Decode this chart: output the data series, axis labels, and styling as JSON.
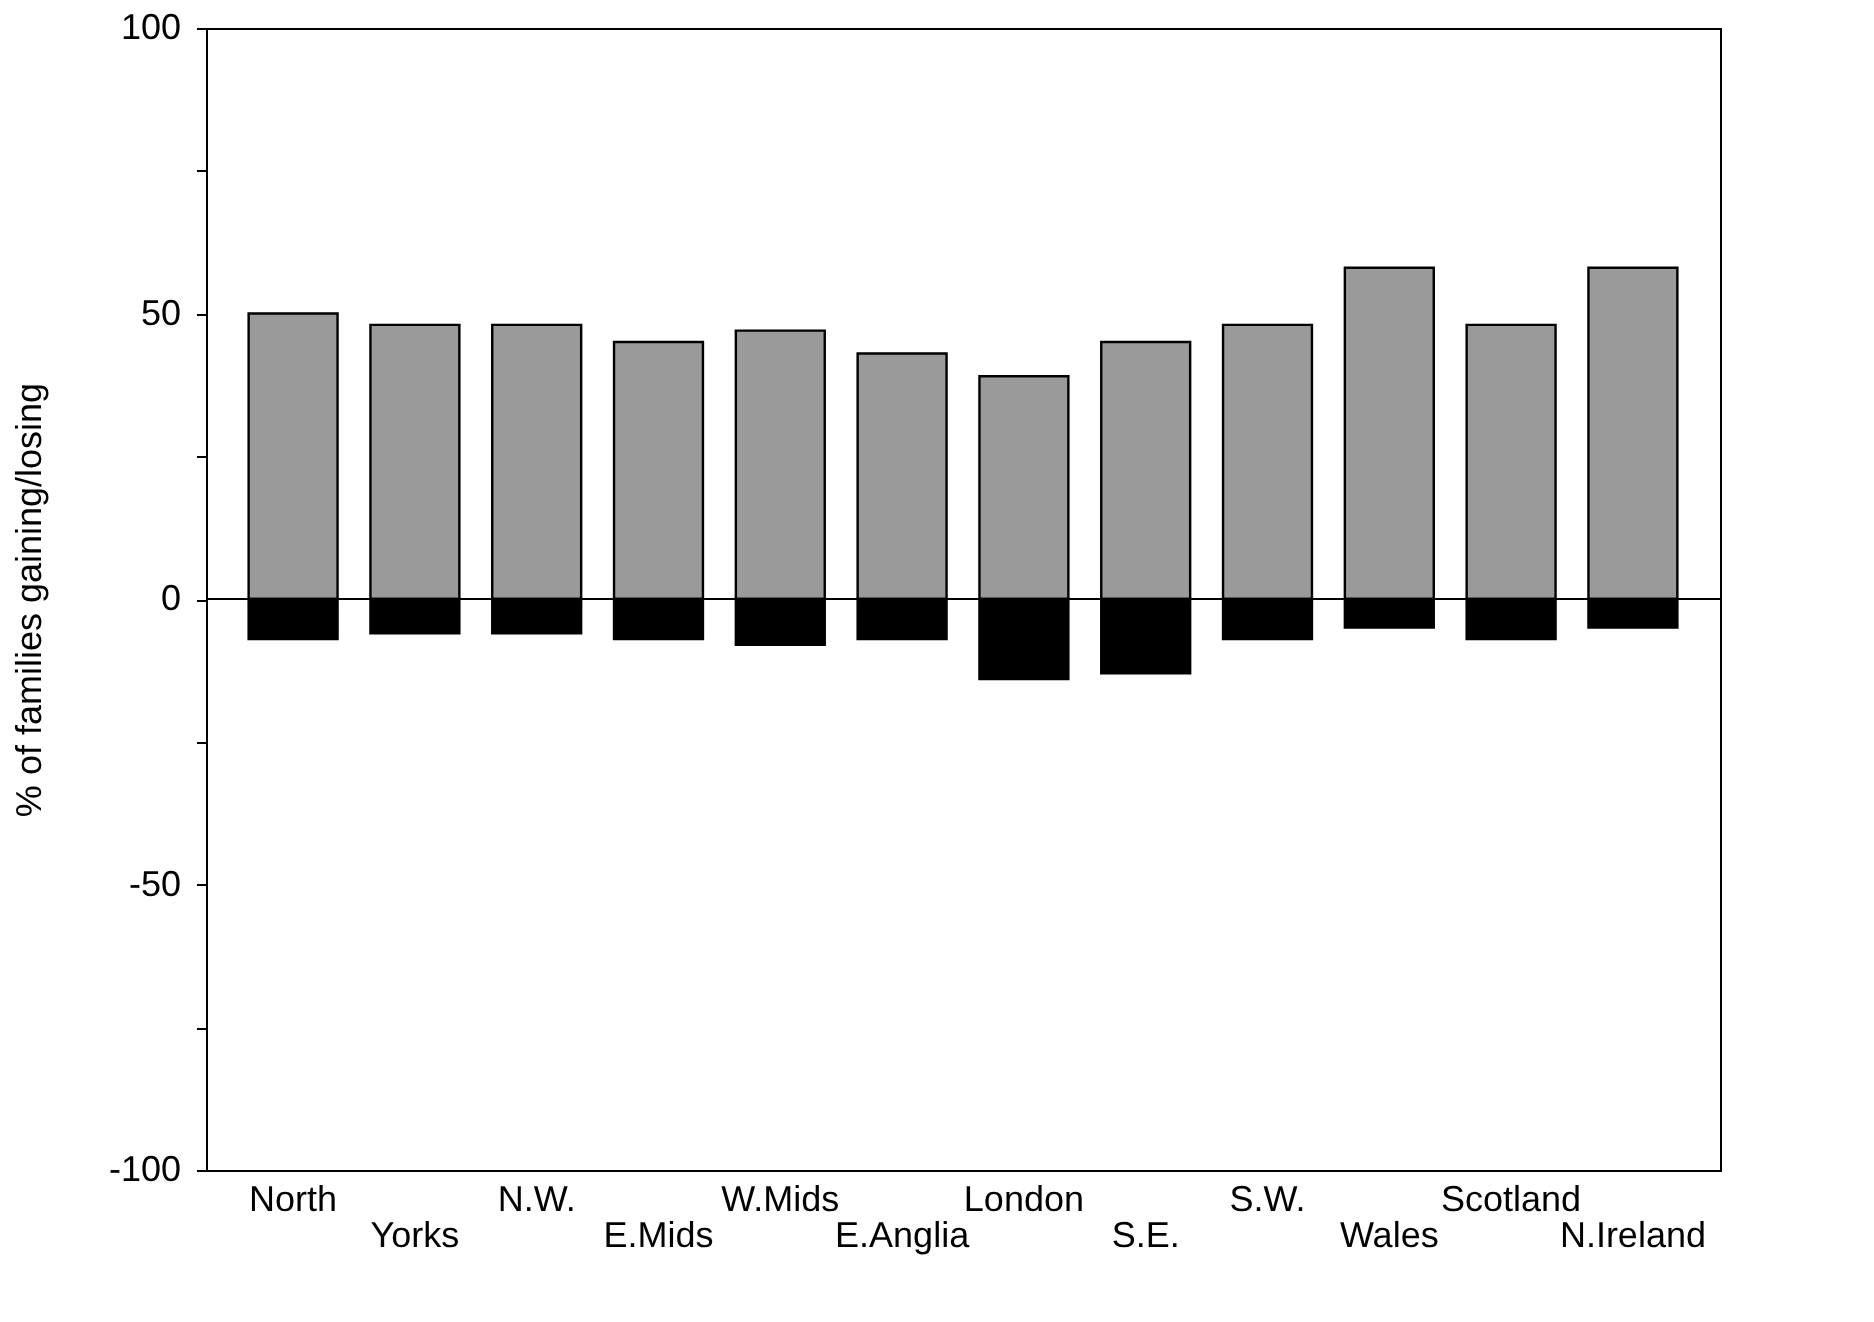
{
  "chart_data": {
    "type": "bar",
    "ylabel": "% of families gaining/losing",
    "categories": [
      "North",
      "Yorks",
      "N.W.",
      "E.Mids",
      "W.Mids",
      "E.Anglia",
      "London",
      "S.E.",
      "S.W.",
      "Wales",
      "Scotland",
      "N.Ireland"
    ],
    "stacked": true,
    "series": [
      {
        "color": "#9a9a9a",
        "values": [
          50,
          48,
          48,
          45,
          47,
          43,
          39,
          45,
          48,
          58,
          48,
          58
        ]
      },
      {
        "color": "#000000",
        "values": [
          -7,
          -6,
          -6,
          -7,
          -8,
          -7,
          -14,
          -13,
          -7,
          -5,
          -7,
          -5
        ]
      }
    ],
    "ylim": [
      -100,
      100
    ],
    "yticks": [
      -100,
      {
        "value": -75,
        "label": null
      },
      -50,
      {
        "value": -25,
        "label": null
      },
      0,
      {
        "value": 25,
        "label": null
      },
      50,
      {
        "value": 75,
        "label": null
      },
      100
    ],
    "ref_lines": [
      {
        "axis": "y",
        "value": 0,
        "color": "#000000"
      }
    ],
    "grid": false,
    "legend": false
  }
}
